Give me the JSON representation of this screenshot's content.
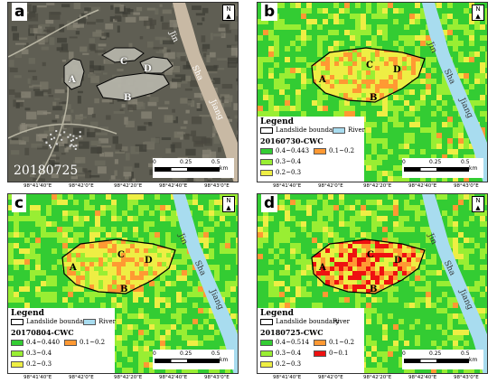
{
  "panels": [
    {
      "id": "a",
      "label": "a",
      "date": "20180725",
      "kind": "image"
    },
    {
      "id": "b",
      "label": "b",
      "kind": "cwc",
      "legend_title": "Legend",
      "legend_subtitle": "20160730-CWC",
      "classes": [
        {
          "label": "0.4~0.443",
          "color": "#33cc33"
        },
        {
          "label": "0.3~0.4",
          "color": "#99ee33"
        },
        {
          "label": "0.2~0.3",
          "color": "#eeee44"
        },
        {
          "label": "0.1~0.2",
          "color": "#ff9933"
        }
      ]
    },
    {
      "id": "c",
      "label": "c",
      "kind": "cwc",
      "legend_title": "Legend",
      "legend_subtitle": "20170804-CWC",
      "classes": [
        {
          "label": "0.4~0.440",
          "color": "#33cc33"
        },
        {
          "label": "0.3~0.4",
          "color": "#99ee33"
        },
        {
          "label": "0.2~0.3",
          "color": "#eeee44"
        },
        {
          "label": "0.1~0.2",
          "color": "#ff9933"
        }
      ]
    },
    {
      "id": "d",
      "label": "d",
      "kind": "cwc",
      "legend_title": "Legend",
      "legend_subtitle": "20180725-CWC",
      "classes": [
        {
          "label": "0.4~0.514",
          "color": "#33cc33"
        },
        {
          "label": "0.3~0.4",
          "color": "#99ee33"
        },
        {
          "label": "0.2~0.3",
          "color": "#eeee44"
        },
        {
          "label": "0.1~0.2",
          "color": "#ff9933"
        },
        {
          "label": "0~0.1",
          "color": "#ee1111"
        }
      ]
    }
  ],
  "legend_common": {
    "boundary": "Landslide boundary",
    "river": "River"
  },
  "sites": [
    "A",
    "B",
    "C",
    "D"
  ],
  "river_name": [
    "Jin",
    "Sha",
    "Jiang"
  ],
  "ticks_x": [
    "98°41'40\"E",
    "98°42'0\"E",
    "98°42'20\"E",
    "98°42'40\"E",
    "98°43'0\"E"
  ],
  "ticks_y": [
    "31°4'20\"N",
    "31°4'0\"N",
    "31°3'40\"N"
  ],
  "scale": {
    "zero": "0",
    "mid": "0.25",
    "end": "0.5",
    "unit": "km"
  },
  "north": "N",
  "colors": {
    "river": "#a8dcef",
    "high": "#33cc33",
    "mid": "#99ee33",
    "low": "#eeee44",
    "lower": "#ff9933",
    "lowest": "#ee1111"
  }
}
